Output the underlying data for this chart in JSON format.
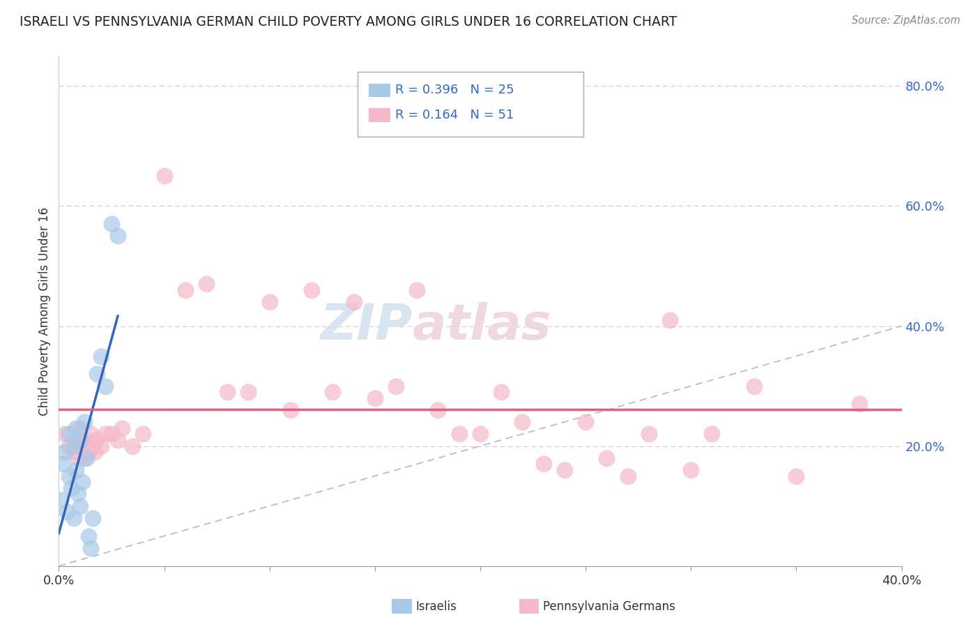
{
  "title": "ISRAELI VS PENNSYLVANIA GERMAN CHILD POVERTY AMONG GIRLS UNDER 16 CORRELATION CHART",
  "source": "Source: ZipAtlas.com",
  "ylabel": "Child Poverty Among Girls Under 16",
  "xlim": [
    0.0,
    0.4
  ],
  "ylim": [
    0.0,
    0.85
  ],
  "israeli_R": 0.396,
  "israeli_N": 25,
  "german_R": 0.164,
  "german_N": 51,
  "israeli_color": "#a8c8e8",
  "german_color": "#f5b8c8",
  "israeli_line_color": "#3366bb",
  "german_line_color": "#e06080",
  "diagonal_color": "#aabbcc",
  "background_color": "#ffffff",
  "grid_color": "#cccccc",
  "tick_label_color": "#3366cc",
  "watermark_color": "#d8e4f0",
  "watermark_color2": "#f0d8e0",
  "israeli_x": [
    0.001,
    0.002,
    0.003,
    0.004,
    0.005,
    0.005,
    0.006,
    0.007,
    0.007,
    0.008,
    0.008,
    0.009,
    0.01,
    0.01,
    0.011,
    0.012,
    0.013,
    0.014,
    0.015,
    0.016,
    0.018,
    0.02,
    0.022,
    0.025,
    0.028
  ],
  "israeli_y": [
    0.11,
    0.17,
    0.19,
    0.09,
    0.22,
    0.15,
    0.13,
    0.2,
    0.08,
    0.16,
    0.23,
    0.12,
    0.1,
    0.21,
    0.14,
    0.24,
    0.18,
    0.05,
    0.03,
    0.08,
    0.32,
    0.35,
    0.3,
    0.57,
    0.55
  ],
  "german_x": [
    0.003,
    0.005,
    0.007,
    0.008,
    0.009,
    0.01,
    0.011,
    0.012,
    0.013,
    0.014,
    0.015,
    0.016,
    0.017,
    0.018,
    0.02,
    0.022,
    0.025,
    0.028,
    0.03,
    0.035,
    0.04,
    0.05,
    0.06,
    0.07,
    0.08,
    0.09,
    0.1,
    0.11,
    0.12,
    0.13,
    0.14,
    0.15,
    0.16,
    0.17,
    0.18,
    0.19,
    0.2,
    0.21,
    0.22,
    0.23,
    0.24,
    0.25,
    0.26,
    0.27,
    0.28,
    0.29,
    0.3,
    0.31,
    0.33,
    0.35,
    0.38
  ],
  "german_y": [
    0.22,
    0.2,
    0.19,
    0.21,
    0.18,
    0.23,
    0.2,
    0.18,
    0.21,
    0.19,
    0.22,
    0.2,
    0.19,
    0.21,
    0.2,
    0.22,
    0.22,
    0.21,
    0.23,
    0.2,
    0.22,
    0.65,
    0.46,
    0.47,
    0.29,
    0.29,
    0.44,
    0.26,
    0.46,
    0.29,
    0.44,
    0.28,
    0.3,
    0.46,
    0.26,
    0.22,
    0.22,
    0.29,
    0.24,
    0.17,
    0.16,
    0.24,
    0.18,
    0.15,
    0.22,
    0.41,
    0.16,
    0.22,
    0.3,
    0.15,
    0.27
  ]
}
